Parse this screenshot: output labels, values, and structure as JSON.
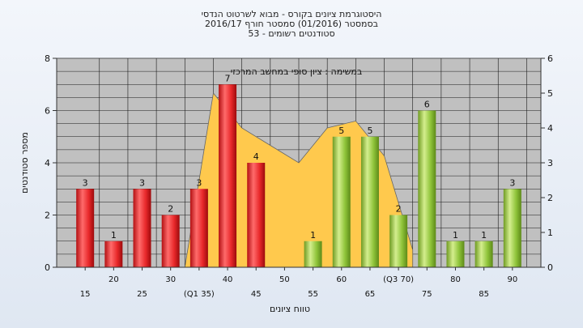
{
  "titles": {
    "line1": "היסטוגרמת ציונים בקורס - מבוא לשרטוט הנדסי",
    "line2": "בסמסטר  (01/2016)  סמסטר חורף  2016/17",
    "line3": "סטודנטים רשומים - 53"
  },
  "chart_data": {
    "type": "bar",
    "xlabel": "טווח ציונים",
    "ylabel": "מספר סטודנטים",
    "annotation": "במשימה : ציון סופי במחשב המרכזי",
    "categories": [
      "15",
      "20",
      "25",
      "30",
      "(Q1 35)",
      "40",
      "45",
      "50",
      "55",
      "60",
      "65",
      "(Q3 70)",
      "75",
      "80",
      "85",
      "90"
    ],
    "values": [
      3,
      1,
      3,
      2,
      3,
      7,
      4,
      0,
      1,
      5,
      5,
      2,
      6,
      1,
      1,
      3
    ],
    "bar_colors": [
      "#e8282a",
      "#e8282a",
      "#e8282a",
      "#e8282a",
      "#e8282a",
      "#e8282a",
      "#e8282a",
      "#e8282a",
      "#8fc43a",
      "#8fc43a",
      "#8fc43a",
      "#8fc43a",
      "#8fc43a",
      "#8fc43a",
      "#8fc43a",
      "#8fc43a"
    ],
    "area_series": {
      "x": [
        3.5,
        4.5,
        5.5,
        6.5,
        7.5,
        8.5,
        9.5,
        10.5,
        11.5
      ],
      "values": [
        0,
        5,
        4,
        3.5,
        3,
        4,
        4.2,
        3.2,
        0.5
      ],
      "color": "#ffc94d"
    },
    "left_axis": {
      "ylim": [
        0,
        8
      ],
      "ticks": [
        0,
        2,
        4,
        6,
        8
      ]
    },
    "right_axis": {
      "ylim": [
        0,
        6
      ],
      "ticks": [
        0,
        1,
        2,
        3,
        4,
        5,
        6
      ]
    },
    "grid": true,
    "plot_background": "#c0c0c0"
  }
}
